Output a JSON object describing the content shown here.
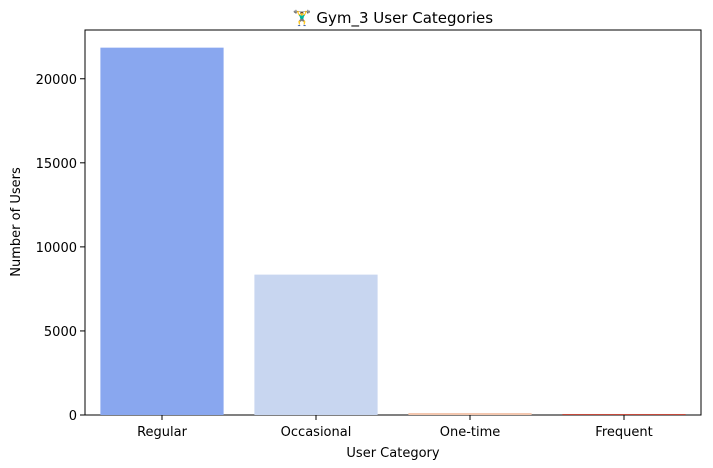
{
  "chart_data": {
    "type": "bar",
    "title": "🏋️‍♂️ Gym_3 User Categories",
    "xlabel": "User Category",
    "ylabel": "Number of Users",
    "categories": [
      "Regular",
      "Occasional",
      "One-time",
      "Frequent"
    ],
    "values": [
      21850,
      8350,
      120,
      60
    ],
    "colors": [
      "#89a7ef",
      "#c8d6f0",
      "#f3c7af",
      "#c44a3c"
    ],
    "ylim": [
      0,
      22900
    ],
    "yticks": [
      0,
      5000,
      10000,
      15000,
      20000
    ],
    "grid": false,
    "legend": "none"
  }
}
